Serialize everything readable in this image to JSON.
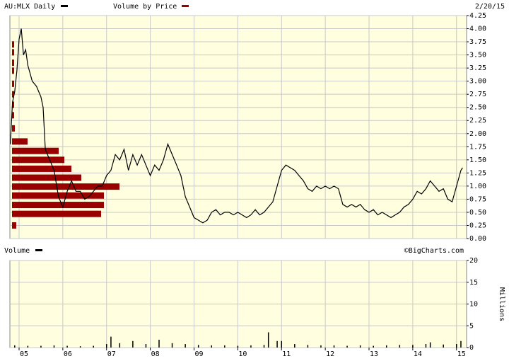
{
  "chart_data": [
    {
      "type": "line",
      "date_label": "2/20/15",
      "series": [
        {
          "name": "AU:MLX Daily",
          "color": "#000000",
          "x": [
            2004.8,
            2004.85,
            2004.9,
            2004.95,
            2005.0,
            2005.05,
            2005.1,
            2005.15,
            2005.2,
            2005.3,
            2005.4,
            2005.5,
            2005.55,
            2005.6,
            2005.7,
            2005.8,
            2005.9,
            2006.0,
            2006.1,
            2006.2,
            2006.3,
            2006.4,
            2006.5,
            2006.6,
            2006.7,
            2006.8,
            2006.9,
            2007.0,
            2007.1,
            2007.2,
            2007.3,
            2007.4,
            2007.5,
            2007.6,
            2007.7,
            2007.8,
            2007.9,
            2008.0,
            2008.1,
            2008.2,
            2008.3,
            2008.4,
            2008.5,
            2008.6,
            2008.7,
            2008.8,
            2008.9,
            2009.0,
            2009.1,
            2009.2,
            2009.3,
            2009.4,
            2009.5,
            2009.6,
            2009.7,
            2009.8,
            2009.9,
            2010.0,
            2010.1,
            2010.2,
            2010.3,
            2010.4,
            2010.5,
            2010.6,
            2010.7,
            2010.8,
            2010.9,
            2011.0,
            2011.1,
            2011.2,
            2011.3,
            2011.4,
            2011.5,
            2011.6,
            2011.7,
            2011.8,
            2011.9,
            2012.0,
            2012.1,
            2012.2,
            2012.3,
            2012.4,
            2012.5,
            2012.6,
            2012.7,
            2012.8,
            2012.9,
            2013.0,
            2013.1,
            2013.2,
            2013.3,
            2013.4,
            2013.5,
            2013.6,
            2013.7,
            2013.8,
            2013.9,
            2014.0,
            2014.1,
            2014.2,
            2014.3,
            2014.4,
            2014.5,
            2014.6,
            2014.7,
            2014.8,
            2014.9,
            2015.0,
            2015.1,
            2015.14
          ],
          "values": [
            1.8,
            2.6,
            2.8,
            3.2,
            3.8,
            4.0,
            3.5,
            3.6,
            3.3,
            3.0,
            2.9,
            2.7,
            2.5,
            1.7,
            1.5,
            1.3,
            0.8,
            0.6,
            0.9,
            1.1,
            0.9,
            0.9,
            0.75,
            0.8,
            0.9,
            1.0,
            1.0,
            1.2,
            1.3,
            1.6,
            1.5,
            1.7,
            1.3,
            1.6,
            1.4,
            1.6,
            1.4,
            1.2,
            1.4,
            1.3,
            1.5,
            1.8,
            1.6,
            1.4,
            1.2,
            0.8,
            0.6,
            0.4,
            0.35,
            0.3,
            0.35,
            0.5,
            0.55,
            0.45,
            0.5,
            0.5,
            0.45,
            0.5,
            0.45,
            0.4,
            0.45,
            0.55,
            0.45,
            0.5,
            0.6,
            0.7,
            1.0,
            1.3,
            1.4,
            1.35,
            1.3,
            1.2,
            1.1,
            0.95,
            0.9,
            1.0,
            0.95,
            1.0,
            0.95,
            1.0,
            0.95,
            0.65,
            0.6,
            0.65,
            0.6,
            0.65,
            0.55,
            0.5,
            0.55,
            0.45,
            0.5,
            0.45,
            0.4,
            0.45,
            0.5,
            0.6,
            0.65,
            0.75,
            0.9,
            0.85,
            0.95,
            1.1,
            1.0,
            0.9,
            0.95,
            0.75,
            0.7,
            1.0,
            1.3,
            1.35
          ]
        }
      ],
      "volume_by_price": {
        "name": "Volume by Price",
        "color": "#990000",
        "levels": [
          3.7,
          3.55,
          3.35,
          3.2,
          2.95,
          2.75,
          2.55,
          2.35,
          2.1,
          1.85,
          1.67,
          1.5,
          1.33,
          1.16,
          0.99,
          0.82,
          0.64,
          0.47,
          0.25
        ],
        "values": [
          3,
          3,
          3,
          3,
          3,
          3,
          3,
          3,
          4,
          22,
          66,
          74,
          84,
          98,
          152,
          130,
          130,
          126,
          6
        ]
      },
      "xlim": [
        2004.79,
        2015.23
      ],
      "xticks": [
        {
          "value": 2005,
          "label": "05"
        },
        {
          "value": 2006,
          "label": "06"
        },
        {
          "value": 2007,
          "label": "07"
        },
        {
          "value": 2008,
          "label": "08"
        },
        {
          "value": 2009,
          "label": "09"
        },
        {
          "value": 2010,
          "label": "10"
        },
        {
          "value": 2011,
          "label": "11"
        },
        {
          "value": 2012,
          "label": "12"
        },
        {
          "value": 2013,
          "label": "13"
        },
        {
          "value": 2014,
          "label": "14"
        },
        {
          "value": 2015,
          "label": "15"
        }
      ],
      "ylim": [
        0,
        4.25
      ],
      "yticks": [
        {
          "value": 0,
          "label": "0.00"
        },
        {
          "value": 0.25,
          "label": "0.25"
        },
        {
          "value": 0.5,
          "label": "0.50"
        },
        {
          "value": 0.75,
          "label": "0.75"
        },
        {
          "value": 1,
          "label": "1.00"
        },
        {
          "value": 1.25,
          "label": "1.25"
        },
        {
          "value": 1.5,
          "label": "1.50"
        },
        {
          "value": 1.75,
          "label": "1.75"
        },
        {
          "value": 2,
          "label": "2.00"
        },
        {
          "value": 2.25,
          "label": "2.25"
        },
        {
          "value": 2.5,
          "label": "2.50"
        },
        {
          "value": 2.75,
          "label": "2.75"
        },
        {
          "value": 3,
          "label": "3.00"
        },
        {
          "value": 3.25,
          "label": "3.25"
        },
        {
          "value": 3.5,
          "label": "3.50"
        },
        {
          "value": 3.75,
          "label": "3.75"
        },
        {
          "value": 4,
          "label": "4.00"
        },
        {
          "value": 4.25,
          "label": "4.25"
        }
      ],
      "grid": true
    },
    {
      "type": "bar",
      "source": "©BigCharts.com",
      "y_label": "Millions",
      "series": [
        {
          "name": "Volume",
          "color": "#000000",
          "x": [
            2004.9,
            2005.2,
            2005.5,
            2005.8,
            2006.1,
            2006.4,
            2006.7,
            2007.0,
            2007.1,
            2007.3,
            2007.6,
            2007.9,
            2008.2,
            2008.5,
            2008.8,
            2009.1,
            2009.4,
            2009.7,
            2010.0,
            2010.3,
            2010.6,
            2010.7,
            2010.9,
            2011.0,
            2011.3,
            2011.6,
            2011.9,
            2012.2,
            2012.5,
            2012.8,
            2013.1,
            2013.4,
            2013.7,
            2014.0,
            2014.3,
            2014.4,
            2014.7,
            2015.0,
            2015.1
          ],
          "values": [
            0.5,
            0.4,
            0.4,
            0.5,
            0.4,
            0.3,
            0.4,
            0.8,
            2.5,
            1.0,
            1.5,
            0.8,
            1.8,
            1.0,
            0.8,
            0.6,
            0.5,
            0.5,
            0.4,
            0.5,
            0.6,
            3.5,
            1.5,
            1.5,
            0.8,
            0.6,
            0.5,
            0.5,
            0.4,
            0.5,
            0.4,
            0.5,
            0.6,
            0.6,
            0.8,
            1.2,
            0.7,
            0.8,
            1.5
          ]
        }
      ],
      "xlim": [
        2004.79,
        2015.23
      ],
      "xticks": [
        {
          "value": 2005,
          "label": "05"
        },
        {
          "value": 2006,
          "label": "06"
        },
        {
          "value": 2007,
          "label": "07"
        },
        {
          "value": 2008,
          "label": "08"
        },
        {
          "value": 2009,
          "label": "09"
        },
        {
          "value": 2010,
          "label": "10"
        },
        {
          "value": 2011,
          "label": "11"
        },
        {
          "value": 2012,
          "label": "12"
        },
        {
          "value": 2013,
          "label": "13"
        },
        {
          "value": 2014,
          "label": "14"
        },
        {
          "value": 2015,
          "label": "15"
        }
      ],
      "ylim": [
        0,
        20
      ],
      "yticks": [
        0,
        5,
        10,
        15,
        20
      ],
      "grid": true
    }
  ]
}
